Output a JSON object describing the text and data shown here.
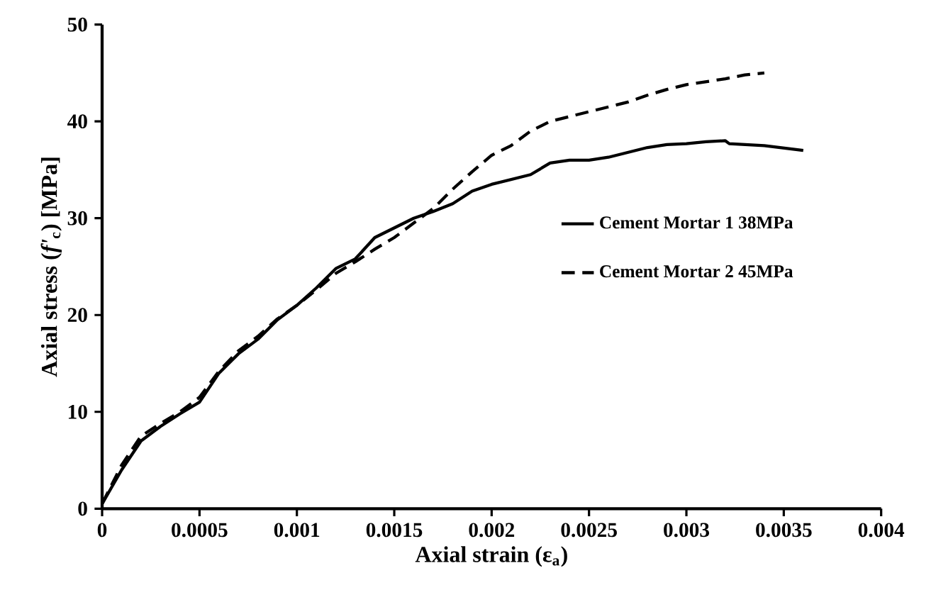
{
  "chart_data": {
    "type": "line",
    "xlabel": "Axial strain (ε$_{a}$)",
    "ylabel": "Axial stress (*f'*$_{c}$) [MPa]",
    "xlim": [
      0,
      0.004
    ],
    "ylim": [
      0,
      50
    ],
    "xticks": [
      0,
      0.0005,
      0.001,
      0.0015,
      0.002,
      0.0025,
      0.003,
      0.0035,
      0.004
    ],
    "yticks": [
      0,
      10,
      20,
      30,
      40,
      50
    ],
    "grid": false,
    "legend": "right",
    "marker": "none",
    "series": [
      {
        "name": "Cement Mortar 1 38MPa",
        "color": "#000000",
        "line_style": "solid",
        "x": [
          0,
          0.0001,
          0.0002,
          0.0003,
          0.0004,
          0.0005,
          0.0006,
          0.0007,
          0.0008,
          0.0009,
          0.001,
          0.0011,
          0.0012,
          0.0013,
          0.0014,
          0.0015,
          0.0016,
          0.0017,
          0.0018,
          0.0019,
          0.002,
          0.0021,
          0.0022,
          0.0023,
          0.0024,
          0.0025,
          0.0026,
          0.0027,
          0.0028,
          0.0029,
          0.003,
          0.0031,
          0.0032,
          0.00322,
          0.0034,
          0.0036
        ],
        "values": [
          0.5,
          4,
          7,
          8.5,
          9.8,
          11,
          14,
          16,
          17.5,
          19.5,
          21,
          22.8,
          24.8,
          25.8,
          28,
          29,
          30,
          30.7,
          31.5,
          32.8,
          33.5,
          34,
          34.5,
          35.7,
          36,
          36,
          36.3,
          36.8,
          37.3,
          37.6,
          37.7,
          37.9,
          38,
          37.7,
          37.5,
          37
        ]
      },
      {
        "name": "Cement Mortar 2 45MPa",
        "color": "#000000",
        "line_style": "dashed",
        "x": [
          0,
          0.0001,
          0.0002,
          0.0003,
          0.0004,
          0.0005,
          0.0006,
          0.0007,
          0.0008,
          0.0009,
          0.001,
          0.0011,
          0.0012,
          0.0013,
          0.0014,
          0.0015,
          0.0016,
          0.0017,
          0.0018,
          0.0019,
          0.002,
          0.0021,
          0.0022,
          0.0023,
          0.0024,
          0.0025,
          0.0026,
          0.0027,
          0.0028,
          0.0029,
          0.003,
          0.0031,
          0.0032,
          0.0033,
          0.0034
        ],
        "values": [
          0.5,
          4.5,
          7.5,
          8.8,
          10,
          11.5,
          14.2,
          16.3,
          17.8,
          19.6,
          21,
          22.6,
          24.3,
          25.5,
          26.8,
          28,
          29.5,
          31,
          33,
          34.8,
          36.5,
          37.5,
          39,
          40,
          40.5,
          41,
          41.5,
          42,
          42.7,
          43.3,
          43.8,
          44.1,
          44.4,
          44.8,
          45
        ]
      }
    ]
  }
}
